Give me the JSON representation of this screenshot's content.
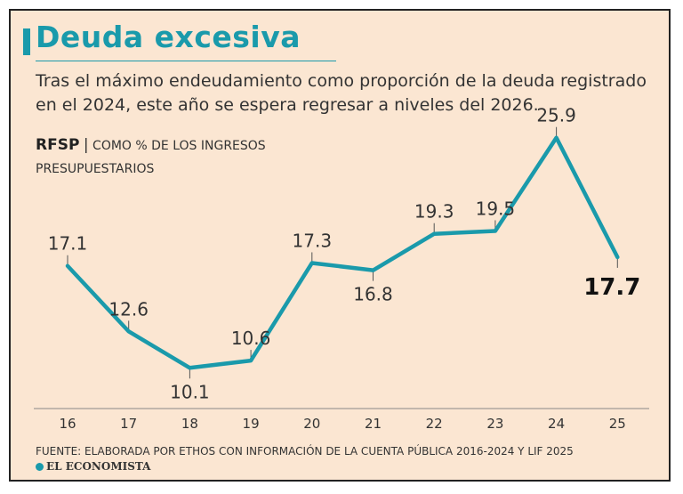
{
  "header": {
    "title": "Deuda excesiva",
    "subtitle": "Tras el máximo endeudamiento como proporción de la deuda registrado en el 2024, este año se espera regresar a niveles del 2026."
  },
  "measure": {
    "name": "RFSP",
    "separator": "|",
    "description": "COMO % DE LOS INGRESOS PRESUPUESTARIOS"
  },
  "chart_data": {
    "type": "line",
    "categories": [
      "16",
      "17",
      "18",
      "19",
      "20",
      "21",
      "22",
      "23",
      "24",
      "25"
    ],
    "values": [
      17.1,
      12.6,
      10.1,
      10.6,
      17.3,
      16.8,
      19.3,
      19.5,
      25.9,
      17.7
    ],
    "data_labels": [
      "17.1",
      "12.6",
      "10.1",
      "10.6",
      "17.3",
      "16.8",
      "19.3",
      "19.5",
      "25.9",
      "17.7"
    ],
    "ylim": [
      7,
      29
    ],
    "grid": false,
    "highlight_last": true,
    "line_color": "#1a9aab"
  },
  "footer": {
    "source": "FUENTE: ELABORADA POR ETHOS CON INFORMACIÓN DE LA CUENTA PÚBLICA 2016-2024 Y LIF 2025",
    "brand": "EL ECONOMISTA"
  }
}
